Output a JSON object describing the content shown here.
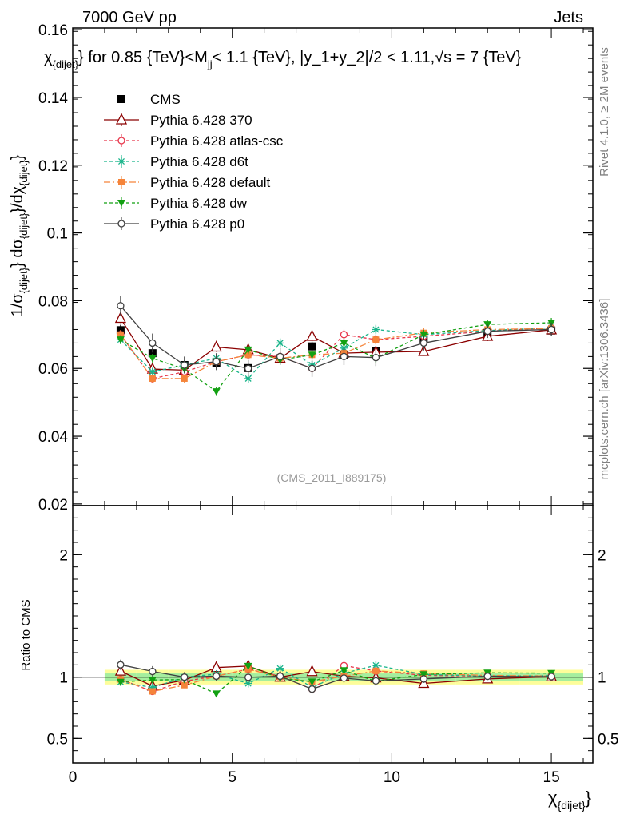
{
  "header": {
    "left": "7000 GeV pp",
    "right": "Jets"
  },
  "side": {
    "rivet": "Rivet 4.1.0, ≥ 2M events",
    "mcplots": "mcplots.cern.ch [arXiv:1306.3436]"
  },
  "chart_data": {
    "type": "line",
    "title": "χ{dijet} for 0.85 {TeV}<Mjj< 1.1 {TeV}, |y_1+y_2|/2 < 1.11,√s = 7 {TeV}",
    "title_parts": {
      "chi": "χ",
      "chi_sub": "{dijet}",
      "mid": "} for 0.85 {TeV}<M",
      "m_sub": "jj",
      "rest": "< 1.1 {TeV}, |y_1+y_2|/2 < 1.11,√s = 7 {TeV}"
    },
    "ylabel": {
      "a": "1/σ",
      "a_sub": "{dijet}",
      "b": "} dσ",
      "b_sub": "{dijet}",
      "c": "}/dχ",
      "c_sub": "{dijet}",
      "d": "}"
    },
    "xlabel": {
      "main": "χ",
      "sub": "{dijet}",
      "end": "}"
    },
    "ratio_ylabel": "Ratio to CMS",
    "watermark": "(CMS_2011_I889175)",
    "xlim": [
      0,
      16.3
    ],
    "ylim": [
      0.0195,
      0.1605
    ],
    "ratio_ylim": [
      0.3,
      2.4
    ],
    "x_ticks": [
      0,
      5,
      10,
      15
    ],
    "y_ticks": [
      0.02,
      0.04,
      0.06,
      0.08,
      0.1,
      0.12,
      0.14,
      0.16
    ],
    "y_tick_labels": [
      "0.02",
      "0.04",
      "0.06",
      "0.08",
      "0.1",
      "0.12",
      "0.14",
      "0.16"
    ],
    "ratio_ticks": [
      0.5,
      1,
      2
    ],
    "ratio_tick_labels": [
      "0.5",
      "1",
      "2"
    ],
    "bins": [
      [
        1,
        2
      ],
      [
        2,
        3
      ],
      [
        3,
        4
      ],
      [
        4,
        5
      ],
      [
        5,
        6
      ],
      [
        6,
        7
      ],
      [
        7,
        8
      ],
      [
        8,
        9
      ],
      [
        9,
        10
      ],
      [
        10,
        12
      ],
      [
        12,
        14
      ],
      [
        14,
        16
      ]
    ],
    "x": [
      1.5,
      2.5,
      3.5,
      4.5,
      5.5,
      6.5,
      7.5,
      8.5,
      9.5,
      11,
      13,
      15
    ],
    "data": {
      "name": "CMS",
      "values": [
        0.0713,
        0.0645,
        0.061,
        0.0615,
        0.0601,
        0.063,
        0.0665,
        0.064,
        0.0652,
        0.0685,
        0.0705,
        0.0712
      ],
      "errors": [
        0.0016,
        0.0014,
        0.0013,
        0.0013,
        0.0013,
        0.0013,
        0.0014,
        0.0014,
        0.0014,
        0.0014,
        0.0015,
        0.0015
      ]
    },
    "ratio_band_inner": 0.03,
    "ratio_band_outer": 0.06,
    "series": [
      {
        "name": "Pythia 6.428 370",
        "color": "#8b0000",
        "marker": "triangle-open",
        "dash": "",
        "values": [
          0.0748,
          0.0598,
          0.0595,
          0.0663,
          0.0655,
          0.063,
          0.0695,
          0.0645,
          0.0648,
          0.065,
          0.0695,
          0.0714
        ],
        "errors": [
          0.0014,
          0.0012,
          0.0012,
          0.0014,
          0.0013,
          0.0013,
          0.0014,
          0.0013,
          0.0013,
          0.0013,
          0.0014,
          0.0014
        ]
      },
      {
        "name": "Pythia 6.428 atlas-csc",
        "color": "#e8364b",
        "marker": "circle-open",
        "dash": "4,3",
        "values": [
          0.07,
          0.057,
          0.059,
          0.062,
          0.064,
          0.0635,
          0.06,
          0.07,
          0.0685,
          0.0695,
          0.071,
          0.072
        ],
        "errors": [
          0.0013,
          0.0012,
          0.0012,
          0.0013,
          0.0013,
          0.0013,
          0.0012,
          0.0014,
          0.0014,
          0.0014,
          0.0014,
          0.0014
        ]
      },
      {
        "name": "Pythia 6.428 d6t",
        "color": "#18b48a",
        "marker": "star",
        "dash": "4,3",
        "values": [
          0.0685,
          0.059,
          0.061,
          0.063,
          0.057,
          0.0675,
          0.061,
          0.066,
          0.0715,
          0.07,
          0.0712,
          0.072
        ],
        "errors": [
          0.0013,
          0.0012,
          0.0012,
          0.0013,
          0.0013,
          0.0014,
          0.0012,
          0.0013,
          0.0014,
          0.0014,
          0.0014,
          0.0014
        ]
      },
      {
        "name": "Pythia 6.428 default",
        "color": "#f5843a",
        "marker": "square",
        "dash": "8,3,2,3",
        "values": [
          0.07,
          0.057,
          0.057,
          0.062,
          0.064,
          0.063,
          0.064,
          0.0645,
          0.0685,
          0.0705,
          0.0715,
          0.0718
        ],
        "errors": [
          0.0013,
          0.0012,
          0.0012,
          0.0013,
          0.0013,
          0.0013,
          0.0013,
          0.0013,
          0.0014,
          0.0014,
          0.0014,
          0.0014
        ]
      },
      {
        "name": "Pythia 6.428 dw",
        "color": "#12a012",
        "marker": "triangle-down",
        "dash": "4,3",
        "values": [
          0.0685,
          0.063,
          0.0598,
          0.0532,
          0.0655,
          0.0625,
          0.064,
          0.0675,
          0.063,
          0.07,
          0.073,
          0.0735
        ],
        "errors": [
          0.0013,
          0.0013,
          0.0012,
          0.0013,
          0.0013,
          0.0013,
          0.0013,
          0.0014,
          0.0013,
          0.0014,
          0.0014,
          0.0014
        ]
      },
      {
        "name": "Pythia 6.428 p0",
        "color": "#404040",
        "marker": "circle-open",
        "dash": "",
        "values": [
          0.0785,
          0.0675,
          0.061,
          0.062,
          0.06,
          0.0635,
          0.06,
          0.0635,
          0.0632,
          0.0675,
          0.071,
          0.0715
        ],
        "errors": [
          0.003,
          0.0028,
          0.0025,
          0.0025,
          0.0025,
          0.0025,
          0.0025,
          0.0025,
          0.0025,
          0.0022,
          0.002,
          0.002
        ]
      }
    ]
  }
}
